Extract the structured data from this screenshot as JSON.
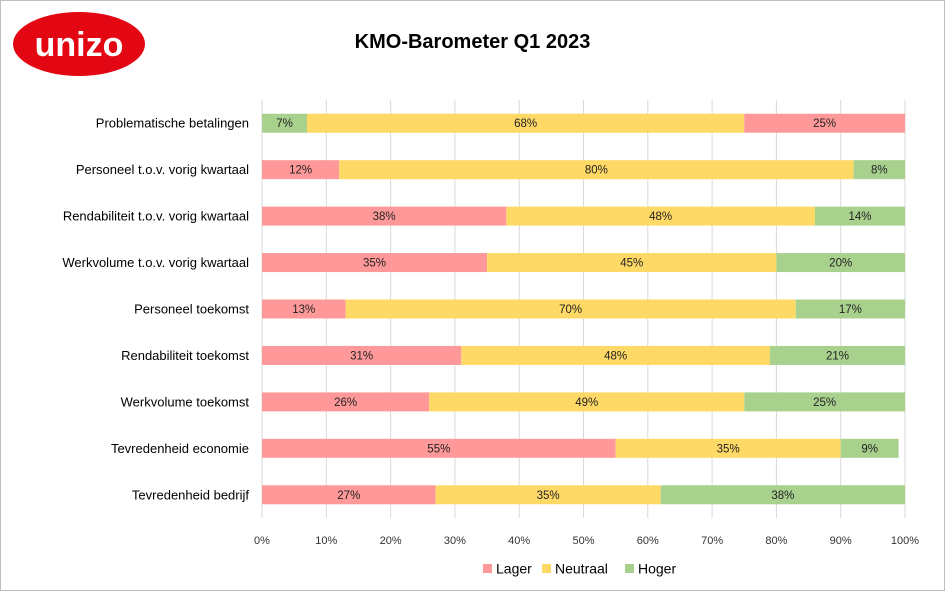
{
  "brand": {
    "logo_text": "unizo",
    "logo_color": "#e30613"
  },
  "chart_data": {
    "type": "bar",
    "orientation": "horizontal",
    "stacked": true,
    "percent_stacked": true,
    "title": "KMO-Barometer Q1 2023",
    "categories": [
      "Problematische betalingen",
      "Personeel t.o.v. vorig kwartaal",
      "Rendabiliteit t.o.v. vorig kwartaal",
      "Werkvolume t.o.v. vorig kwartaal",
      "Personeel toekomst",
      "Rendabiliteit toekomst",
      "Werkvolume toekomst",
      "Tevredenheid economie",
      "Tevredenheid bedrijf"
    ],
    "series": [
      {
        "name": "Lager",
        "color": "#ff9999",
        "values": [
          25,
          12,
          38,
          35,
          13,
          31,
          26,
          55,
          27
        ]
      },
      {
        "name": "Neutraal",
        "color": "#ffd966",
        "values": [
          68,
          80,
          48,
          45,
          70,
          48,
          49,
          35,
          35
        ]
      },
      {
        "name": "Hoger",
        "color": "#a9d18e",
        "values": [
          7,
          8,
          14,
          20,
          17,
          21,
          25,
          9,
          38
        ]
      }
    ],
    "segment_order": [
      [
        "Hoger",
        "Neutraal",
        "Lager"
      ],
      [
        "Lager",
        "Neutraal",
        "Hoger"
      ],
      [
        "Lager",
        "Neutraal",
        "Hoger"
      ],
      [
        "Lager",
        "Neutraal",
        "Hoger"
      ],
      [
        "Lager",
        "Neutraal",
        "Hoger"
      ],
      [
        "Lager",
        "Neutraal",
        "Hoger"
      ],
      [
        "Lager",
        "Neutraal",
        "Hoger"
      ],
      [
        "Lager",
        "Neutraal",
        "Hoger"
      ],
      [
        "Lager",
        "Neutraal",
        "Hoger"
      ]
    ],
    "x_ticks": [
      "0%",
      "10%",
      "20%",
      "30%",
      "40%",
      "50%",
      "60%",
      "70%",
      "80%",
      "90%",
      "100%"
    ],
    "xlim": [
      0,
      100
    ],
    "grid": true,
    "legend": "bottom"
  }
}
